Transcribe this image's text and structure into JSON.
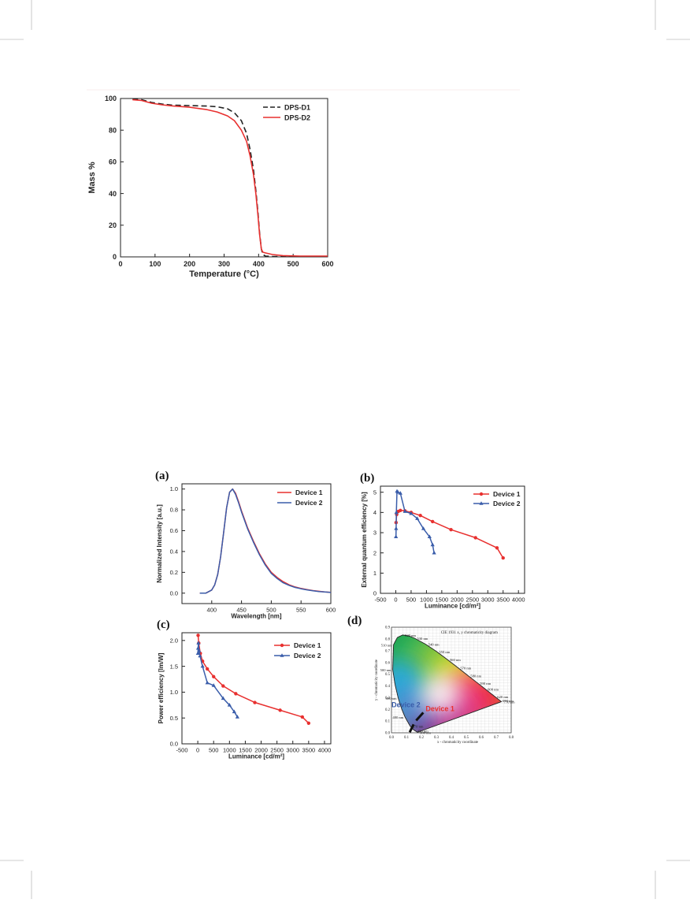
{
  "colors": {
    "red": "#e8302f",
    "blue": "#3a5daa",
    "dark": "#222222"
  },
  "chart_data": [
    {
      "type": "line",
      "xlabel": "Temperature (°C)",
      "ylabel": "Mass %",
      "xlim": [
        0,
        600
      ],
      "ylim": [
        0,
        100
      ],
      "xticks": [
        0,
        100,
        200,
        300,
        400,
        500,
        600
      ],
      "yticks": [
        0,
        20,
        40,
        60,
        80,
        100
      ],
      "legend_position": "top-right",
      "series": [
        {
          "name": "DPS-D1",
          "style": "dashed",
          "color": "#222222",
          "x": [
            35,
            60,
            90,
            120,
            150,
            200,
            250,
            280,
            310,
            330,
            350,
            365,
            375,
            385,
            392,
            398,
            403,
            408,
            412,
            420,
            440,
            470,
            520,
            600
          ],
          "y": [
            99.5,
            99.3,
            97.5,
            96.5,
            95.8,
            95.5,
            95.2,
            94.8,
            93.5,
            91,
            86,
            78,
            68,
            55,
            42,
            28,
            15,
            5,
            1.5,
            0.5,
            0.3,
            0.2,
            0.2,
            0.2
          ]
        },
        {
          "name": "DPS-D2",
          "style": "solid",
          "color": "#e8302f",
          "x": [
            35,
            60,
            90,
            120,
            150,
            200,
            250,
            280,
            310,
            330,
            350,
            365,
            375,
            385,
            392,
            398,
            403,
            408,
            412,
            420,
            440,
            470,
            520,
            600
          ],
          "y": [
            99.2,
            98.8,
            97,
            96,
            95.3,
            94.5,
            93,
            91.5,
            89,
            86,
            80,
            73,
            64,
            52,
            40,
            26,
            14,
            5,
            3,
            2.5,
            1.5,
            0.8,
            0.5,
            0.5
          ]
        }
      ]
    },
    {
      "panel": "(a)",
      "type": "line",
      "xlabel": "Wavelength [nm]",
      "ylabel": "Normalized Intensity [a.u.]",
      "xlim": [
        350,
        600
      ],
      "ylim": [
        -0.1,
        1.05
      ],
      "xticks": [
        400,
        450,
        500,
        550,
        600
      ],
      "yticks": [
        0.0,
        0.2,
        0.4,
        0.6,
        0.8,
        1.0
      ],
      "legend_position": "top-right",
      "series": [
        {
          "name": "Device 1",
          "color": "#e8302f",
          "x": [
            380,
            390,
            400,
            405,
            410,
            415,
            420,
            425,
            430,
            435,
            440,
            445,
            450,
            460,
            470,
            480,
            490,
            500,
            510,
            520,
            530,
            540,
            550,
            560,
            570,
            580,
            590,
            600
          ],
          "y": [
            0.0,
            0.0,
            0.03,
            0.08,
            0.18,
            0.35,
            0.58,
            0.82,
            0.97,
            1.0,
            0.96,
            0.88,
            0.79,
            0.63,
            0.5,
            0.38,
            0.28,
            0.2,
            0.15,
            0.11,
            0.08,
            0.06,
            0.045,
            0.035,
            0.025,
            0.018,
            0.012,
            0.008
          ]
        },
        {
          "name": "Device 2",
          "color": "#3a5daa",
          "x": [
            380,
            390,
            400,
            405,
            410,
            415,
            420,
            425,
            430,
            435,
            440,
            445,
            450,
            460,
            470,
            480,
            490,
            500,
            510,
            520,
            530,
            540,
            550,
            560,
            570,
            580,
            590,
            600
          ],
          "y": [
            0.0,
            0.0,
            0.03,
            0.08,
            0.18,
            0.35,
            0.58,
            0.82,
            0.97,
            1.0,
            0.95,
            0.87,
            0.78,
            0.62,
            0.49,
            0.37,
            0.27,
            0.19,
            0.14,
            0.1,
            0.075,
            0.055,
            0.042,
            0.032,
            0.023,
            0.016,
            0.011,
            0.007
          ]
        }
      ]
    },
    {
      "panel": "(b)",
      "type": "line",
      "xlabel": "Luminance [cd/m²]",
      "ylabel": "External quantum efficiency [%]",
      "xlim": [
        -500,
        4200
      ],
      "ylim": [
        0,
        5.3
      ],
      "xticks": [
        -500,
        0,
        500,
        1000,
        1500,
        2000,
        2500,
        3000,
        3500,
        4000
      ],
      "yticks": [
        0,
        1,
        2,
        3,
        4,
        5
      ],
      "legend_position": "top-right",
      "series": [
        {
          "name": "Device 1",
          "color": "#e8302f",
          "x": [
            10,
            30,
            80,
            150,
            300,
            500,
            800,
            1200,
            1800,
            2600,
            3300,
            3500
          ],
          "y": [
            3.5,
            3.9,
            4.05,
            4.1,
            4.08,
            4.0,
            3.85,
            3.55,
            3.15,
            2.75,
            2.25,
            1.75
          ]
        },
        {
          "name": "Device 2",
          "color": "#3a5daa",
          "x": [
            5,
            10,
            20,
            40,
            70,
            150,
            300,
            500,
            700,
            900,
            1100,
            1200,
            1250
          ],
          "y": [
            2.8,
            3.2,
            4.0,
            5.05,
            5.0,
            4.95,
            4.05,
            3.95,
            3.7,
            3.2,
            2.8,
            2.4,
            2.0
          ]
        }
      ]
    },
    {
      "panel": "(c)",
      "type": "line",
      "xlabel": "Luminance [cd/m²]",
      "ylabel": "Power efficiency [lm/W]",
      "xlim": [
        -500,
        4200
      ],
      "ylim": [
        0,
        2.15
      ],
      "xticks": [
        -500,
        0,
        500,
        1000,
        1500,
        2000,
        2500,
        3000,
        3500,
        4000
      ],
      "yticks": [
        0.0,
        0.5,
        1.0,
        1.5,
        2.0
      ],
      "legend_position": "top-right",
      "series": [
        {
          "name": "Device 1",
          "color": "#e8302f",
          "x": [
            10,
            30,
            80,
            150,
            300,
            500,
            800,
            1200,
            1800,
            2600,
            3300,
            3500
          ],
          "y": [
            2.1,
            1.95,
            1.75,
            1.6,
            1.45,
            1.3,
            1.12,
            0.97,
            0.8,
            0.65,
            0.52,
            0.4
          ]
        },
        {
          "name": "Device 2",
          "color": "#3a5daa",
          "x": [
            5,
            10,
            20,
            40,
            70,
            150,
            300,
            500,
            800,
            1000,
            1150,
            1250
          ],
          "y": [
            1.75,
            1.85,
            1.95,
            1.8,
            1.7,
            1.5,
            1.18,
            1.13,
            0.88,
            0.75,
            0.62,
            0.52
          ]
        }
      ]
    },
    {
      "panel": "(d)",
      "type": "scatter",
      "title": "CIE 1931 x, y chromaticity diagram",
      "xlabel": "x - chromaticity coordinate",
      "ylabel": "y - chromaticity coordinate",
      "xlim": [
        0,
        0.8
      ],
      "ylim": [
        0,
        0.9
      ],
      "xticks": [
        0.0,
        0.1,
        0.2,
        0.3,
        0.4,
        0.5,
        0.6,
        0.7,
        0.8
      ],
      "yticks": [
        0.0,
        0.1,
        0.2,
        0.3,
        0.4,
        0.5,
        0.6,
        0.7,
        0.8,
        0.9
      ],
      "wavelength_labels": [
        {
          "label": "520 nm",
          "x": 0.074,
          "y": 0.834
        },
        {
          "label": "530 nm",
          "x": 0.155,
          "y": 0.806
        },
        {
          "label": "540 nm",
          "x": 0.23,
          "y": 0.754
        },
        {
          "label": "550 nm",
          "x": 0.302,
          "y": 0.692
        },
        {
          "label": "560 nm",
          "x": 0.373,
          "y": 0.624
        },
        {
          "label": "570 nm",
          "x": 0.444,
          "y": 0.555
        },
        {
          "label": "580 nm",
          "x": 0.512,
          "y": 0.487
        },
        {
          "label": "590 nm",
          "x": 0.575,
          "y": 0.424
        },
        {
          "label": "600 nm",
          "x": 0.627,
          "y": 0.372
        },
        {
          "label": "620 nm",
          "x": 0.691,
          "y": 0.308
        },
        {
          "label": "650 nm",
          "x": 0.726,
          "y": 0.274
        },
        {
          "label": "770 nm",
          "x": 0.735,
          "y": 0.265
        },
        {
          "label": "510 nm",
          "x": 0.014,
          "y": 0.75
        },
        {
          "label": "500 nm",
          "x": 0.008,
          "y": 0.538
        },
        {
          "label": "490 nm",
          "x": 0.045,
          "y": 0.295
        },
        {
          "label": "480 nm",
          "x": 0.091,
          "y": 0.133
        },
        {
          "label": "470 nm",
          "x": 0.124,
          "y": 0.058
        },
        {
          "label": "450 nm",
          "x": 0.157,
          "y": 0.018
        },
        {
          "label": "380 nm",
          "x": 0.174,
          "y": 0.005
        }
      ],
      "points": [
        {
          "name": "Device 1",
          "color": "#e8302f",
          "x": 0.165,
          "y": 0.105
        },
        {
          "name": "Device 2",
          "color": "#3a5daa",
          "x": 0.148,
          "y": 0.085
        }
      ]
    }
  ]
}
